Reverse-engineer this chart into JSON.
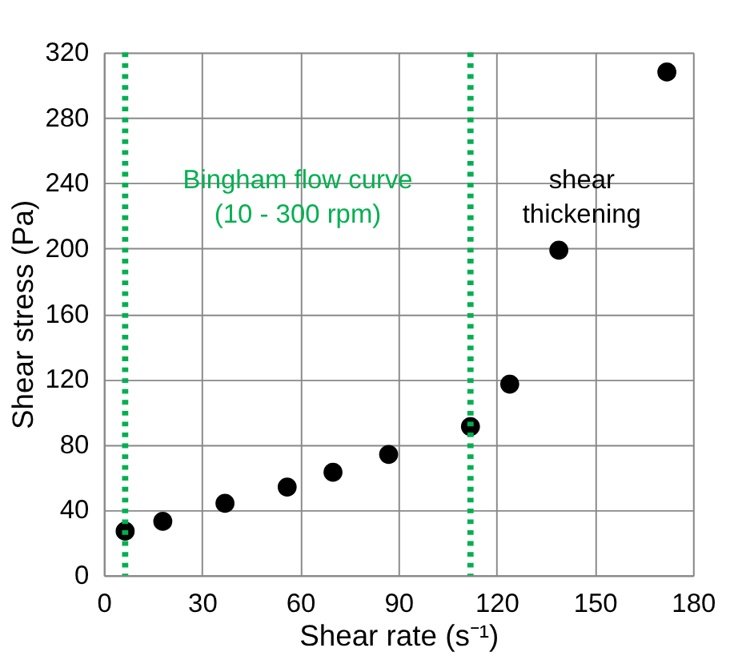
{
  "chart_data": {
    "type": "scatter",
    "xlabel": "Shear rate (s⁻¹)",
    "ylabel": "Shear stress (Pa)",
    "x": [
      6.5,
      18,
      37,
      56,
      70,
      87,
      112,
      124,
      139,
      172
    ],
    "series": [
      {
        "color": "#000000",
        "values": [
          27,
          33,
          44,
          54,
          63,
          74,
          91,
          117,
          199,
          308
        ]
      }
    ],
    "marker": "circle",
    "xlim": [
      0,
      180
    ],
    "xticks": [
      0,
      30,
      60,
      90,
      120,
      150,
      180
    ],
    "ylim": [
      0,
      320
    ],
    "yticks": [
      0,
      40,
      80,
      120,
      160,
      200,
      240,
      280,
      320
    ],
    "grid": true,
    "ref_lines": [
      {
        "axis": "x",
        "value": 6.5,
        "color": "#00b050",
        "line_style": "dotted"
      },
      {
        "axis": "x",
        "value": 112,
        "color": "#00b050",
        "line_style": "dotted"
      }
    ],
    "annotations": [
      "Bingham flow curve\n(10 - 300 rpm)",
      "shear\nthickening"
    ]
  }
}
